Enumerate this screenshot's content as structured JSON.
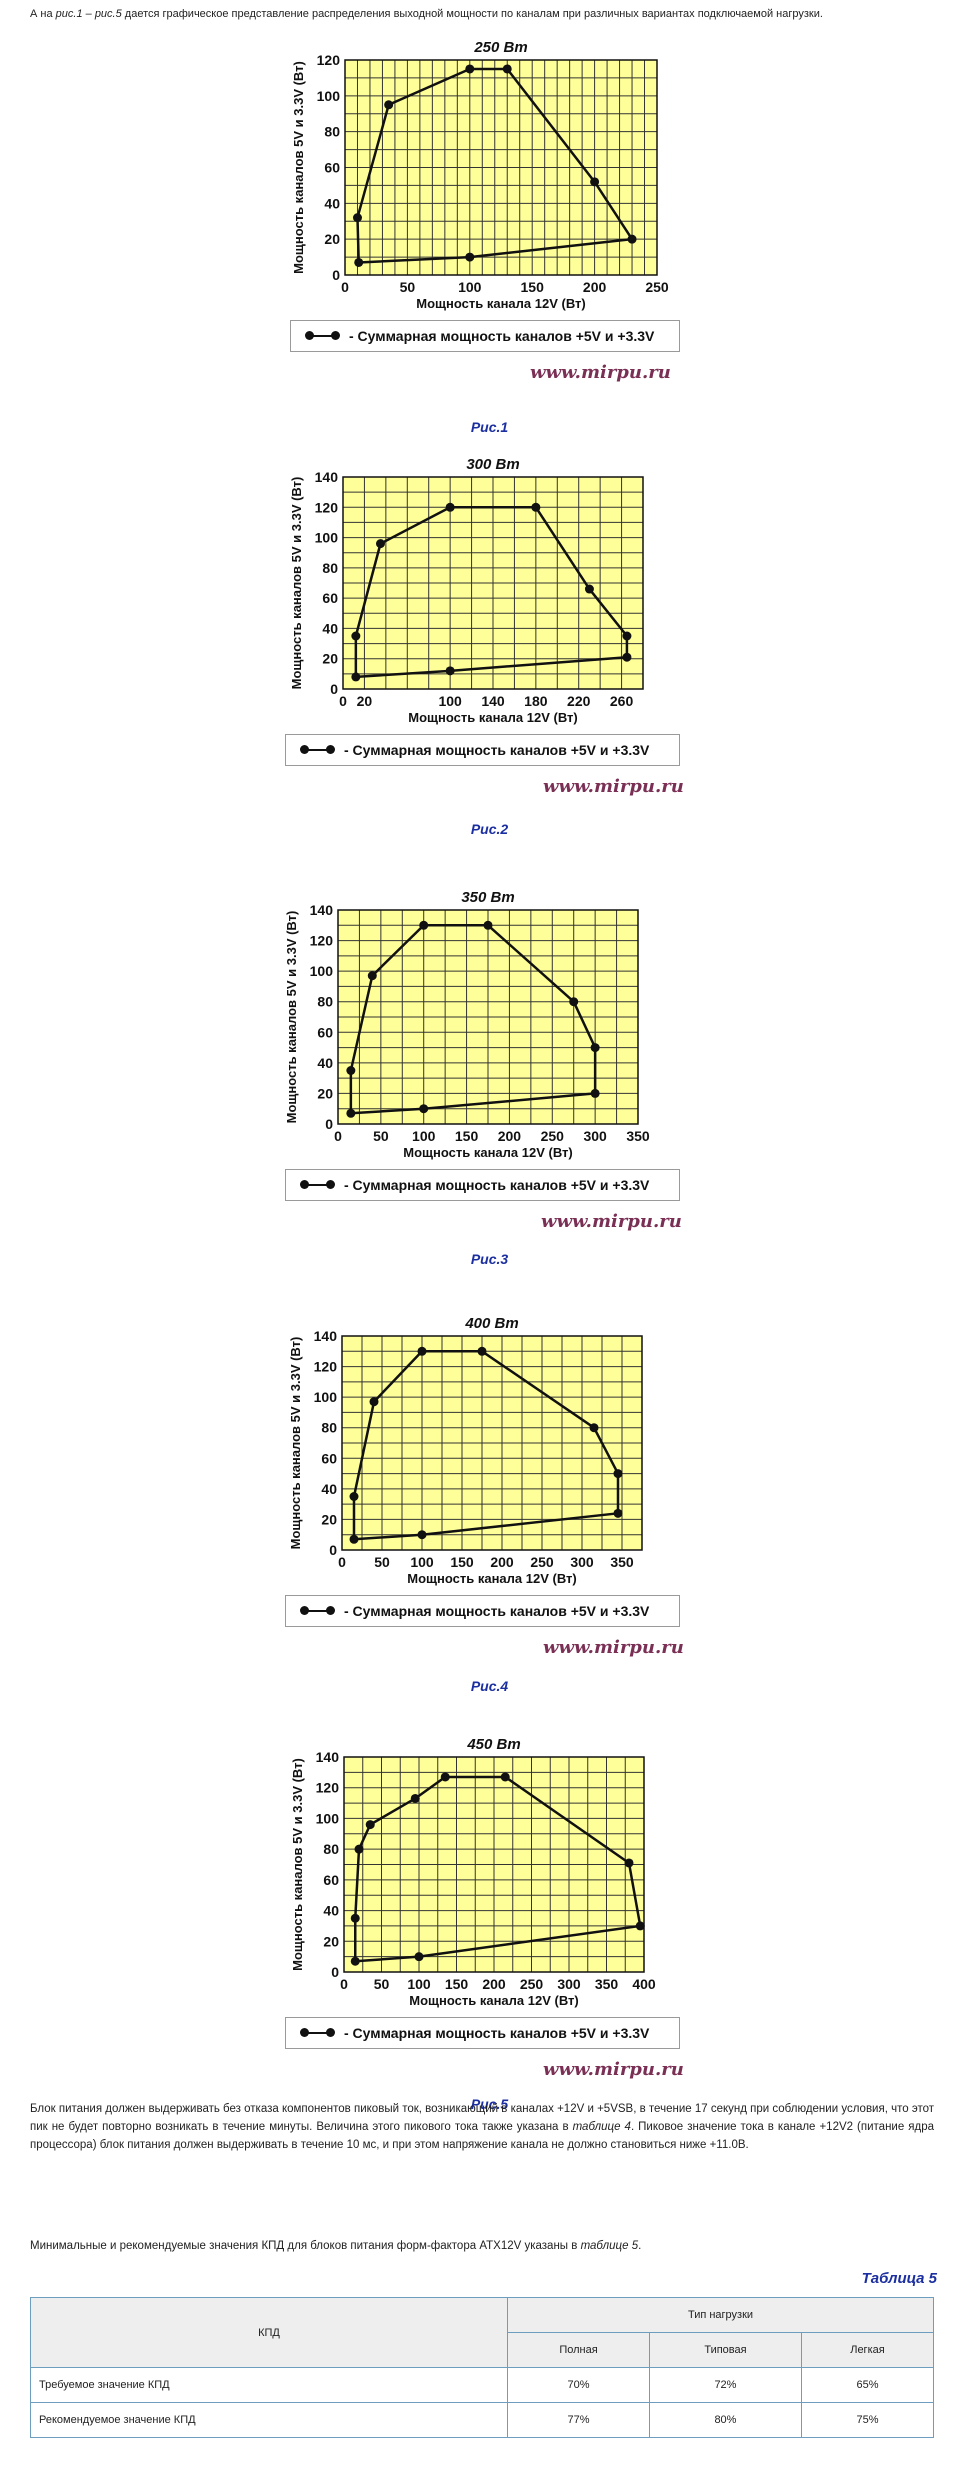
{
  "intro": {
    "prefix": "А на ",
    "ref1": "рис.1",
    "dash": " – ",
    "ref2": "рис.5",
    "suffix": " дается графическое представление распределения выходной мощности по каналам при различных вариантах подключаемой нагрузки."
  },
  "legend_label": "- Суммарная мощность каналов +5V и +3.3V",
  "watermark": "www.mirpu.ru",
  "colors": {
    "plot_bg": "#ffff99",
    "grid": "#333333",
    "line": "#111111",
    "caption": "#1c2fa0",
    "watermark": "#7a2f55"
  },
  "chart_data": [
    {
      "type": "line",
      "caption": "Рис.1",
      "title": "250 Вт",
      "xlabel": "Мощность канала 12V (Вт)",
      "ylabel": "Мощность каналов 5V и 3.3V (Вт)",
      "xlim": [
        0,
        250
      ],
      "ylim": [
        0,
        120
      ],
      "x_ticks": [
        0,
        50,
        100,
        150,
        200,
        250
      ],
      "y_ticks": [
        0,
        20,
        40,
        60,
        80,
        100,
        120
      ],
      "grid_x_step": 10,
      "grid_y_step": 10,
      "series": [
        {
          "name": "- Суммарная мощность каналов +5V и +3.3V",
          "x": [
            11,
            10,
            35,
            100,
            130,
            200,
            230,
            100,
            11
          ],
          "y": [
            7,
            32,
            95,
            115,
            115,
            52,
            20,
            10,
            7
          ]
        }
      ]
    },
    {
      "type": "line",
      "caption": "Рис.2",
      "title": "300 Вт",
      "xlabel": "Мощность канала 12V (Вт)",
      "ylabel": "Мощность каналов 5V и 3.3V (Вт)",
      "xlim": [
        0,
        280
      ],
      "ylim": [
        0,
        140
      ],
      "x_ticks": [
        0,
        20,
        100,
        140,
        180,
        220,
        260
      ],
      "y_ticks": [
        0,
        20,
        40,
        60,
        80,
        100,
        120,
        140
      ],
      "grid_x_step": 20,
      "grid_y_step": 10,
      "series": [
        {
          "name": "- Суммарная мощность каналов +5V и +3.3V",
          "x": [
            12,
            12,
            35,
            100,
            180,
            230,
            265,
            265,
            100,
            12
          ],
          "y": [
            8,
            35,
            96,
            120,
            120,
            66,
            35,
            21,
            12,
            8
          ]
        }
      ]
    },
    {
      "type": "line",
      "caption": "Рис.3",
      "title": "350 Вт",
      "xlabel": "Мощность канала 12V (Вт)",
      "ylabel": "Мощность каналов 5V и 3.3V (Вт)",
      "xlim": [
        0,
        350
      ],
      "ylim": [
        0,
        140
      ],
      "x_ticks": [
        0,
        50,
        100,
        150,
        200,
        250,
        300,
        350
      ],
      "y_ticks": [
        0,
        20,
        40,
        60,
        80,
        100,
        120,
        140
      ],
      "grid_x_step": 25,
      "grid_y_step": 10,
      "series": [
        {
          "name": "- Суммарная мощность каналов +5V и +3.3V",
          "x": [
            15,
            15,
            40,
            100,
            175,
            275,
            300,
            300,
            100,
            15
          ],
          "y": [
            7,
            35,
            97,
            130,
            130,
            80,
            50,
            20,
            10,
            7
          ]
        }
      ]
    },
    {
      "type": "line",
      "caption": "Рис.4",
      "title": "400 Вт",
      "xlabel": "Мощность канала 12V (Вт)",
      "ylabel": "Мощность каналов 5V и 3.3V (Вт)",
      "xlim": [
        0,
        375
      ],
      "ylim": [
        0,
        140
      ],
      "x_ticks": [
        0,
        50,
        100,
        150,
        200,
        250,
        300,
        350
      ],
      "y_ticks": [
        0,
        20,
        40,
        60,
        80,
        100,
        120,
        140
      ],
      "grid_x_step": 25,
      "grid_y_step": 10,
      "series": [
        {
          "name": "- Суммарная мощность каналов +5V и +3.3V",
          "x": [
            15,
            15,
            40,
            100,
            175,
            315,
            345,
            345,
            100,
            15
          ],
          "y": [
            7,
            35,
            97,
            130,
            130,
            80,
            50,
            24,
            10,
            7
          ]
        }
      ]
    },
    {
      "type": "line",
      "caption": "Рис.5",
      "title": "450 Вт",
      "xlabel": "Мощность канала 12V (Вт)",
      "ylabel": "Мощность каналов 5V и 3.3V (Вт)",
      "xlim": [
        0,
        400
      ],
      "ylim": [
        0,
        140
      ],
      "x_ticks": [
        0,
        50,
        100,
        150,
        200,
        250,
        300,
        350,
        400
      ],
      "y_ticks": [
        0,
        20,
        40,
        60,
        80,
        100,
        120,
        140
      ],
      "grid_x_step": 25,
      "grid_y_step": 10,
      "series": [
        {
          "name": "- Суммарная мощность каналов +5V и +3.3V",
          "x": [
            15,
            15,
            20,
            35,
            95,
            135,
            215,
            380,
            395,
            100,
            15
          ],
          "y": [
            7,
            35,
            80,
            96,
            113,
            127,
            127,
            71,
            30,
            10,
            7
          ]
        }
      ]
    }
  ],
  "paragraph1": {
    "a": "Блок питания должен выдерживать без отказа компонентов пиковый ток, возникающий в каналах +12V и +5VSB, в течение 17 секунд при соблюдении условия, что этот пик не будет повторно возникать в течение минуты. Величина этого пикового тока также указана в ",
    "ref": "таблице 4",
    "b": ". Пиковое значение тока в канале +12V2 (питание ядра процессора) блок питания должен выдерживать в течение 10 мс, и при этом напряжение канала не должно становиться ниже +11.0В."
  },
  "paragraph2": {
    "a": "Минимальные и рекомендуемые значения КПД для блоков питания форм-фактора ATX12V указаны в ",
    "ref": "таблице 5",
    "b": "."
  },
  "table": {
    "title": "Таблица 5",
    "col_kpd": "КПД",
    "col_load": "Тип нагрузки",
    "load_types": [
      "Полная",
      "Типовая",
      "Легкая"
    ],
    "rows": [
      {
        "name": "Требуемое значение КПД",
        "values": [
          "70%",
          "72%",
          "65%"
        ]
      },
      {
        "name": "Рекомендуемое значение КПД",
        "values": [
          "77%",
          "80%",
          "75%"
        ]
      }
    ]
  }
}
